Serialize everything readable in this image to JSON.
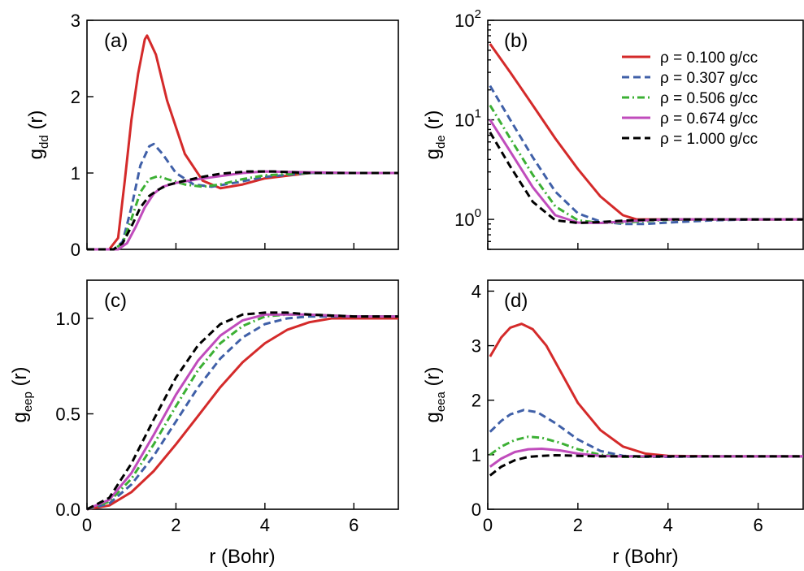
{
  "figure": {
    "xlabel": "r (Bohr)"
  },
  "colors": {
    "red": "#d42a2a",
    "blue": "#4060a8",
    "green": "#3cb034",
    "magenta": "#c04cbc",
    "black": "#000000"
  },
  "chart_data": [
    {
      "type": "line",
      "panel_label": "(a)",
      "ylabel_main": "g",
      "ylabel_sub": "dd",
      "ylabel_suffix": " (r)",
      "xlim": [
        0,
        7
      ],
      "ylim": [
        0,
        3
      ],
      "yscale": "linear",
      "xticks": [
        0,
        2,
        4,
        6
      ],
      "xtick_labels": [
        "0",
        "2",
        "4",
        "6"
      ],
      "yticks": [
        0,
        1,
        2,
        3
      ],
      "ytick_labels": [
        "0",
        "1",
        "2",
        "3"
      ],
      "show_xtick_labels": false,
      "series": [
        {
          "name": "ρ = 0.100 g/cc",
          "color": "#d42a2a",
          "style": "solid",
          "x": [
            0,
            0.5,
            0.7,
            0.85,
            1.0,
            1.15,
            1.3,
            1.35,
            1.55,
            1.8,
            2.2,
            2.6,
            3.0,
            3.5,
            4.0,
            5.0,
            6.0,
            7.0
          ],
          "y": [
            0,
            0,
            0.15,
            0.9,
            1.7,
            2.3,
            2.75,
            2.8,
            2.55,
            1.95,
            1.25,
            0.9,
            0.8,
            0.85,
            0.93,
            1.0,
            1.0,
            1.0
          ]
        },
        {
          "name": "ρ = 0.307 g/cc",
          "color": "#4060a8",
          "style": "dashed",
          "x": [
            0,
            0.6,
            0.8,
            1.0,
            1.2,
            1.4,
            1.5,
            1.7,
            2.0,
            2.4,
            2.8,
            3.4,
            4.0,
            5.0,
            6.0,
            7.0
          ],
          "y": [
            0,
            0,
            0.1,
            0.55,
            1.1,
            1.35,
            1.38,
            1.25,
            1.0,
            0.85,
            0.82,
            0.88,
            0.95,
            1.0,
            1.0,
            1.0
          ]
        },
        {
          "name": "ρ = 0.506 g/cc",
          "color": "#3cb034",
          "style": "dashdot",
          "x": [
            0,
            0.6,
            0.8,
            1.0,
            1.2,
            1.4,
            1.6,
            1.8,
            2.2,
            2.6,
            3.0,
            3.5,
            4.0,
            5.0,
            6.0,
            7.0
          ],
          "y": [
            0,
            0,
            0.08,
            0.4,
            0.75,
            0.92,
            0.96,
            0.92,
            0.85,
            0.82,
            0.85,
            0.92,
            0.97,
            1.0,
            1.0,
            1.0
          ]
        },
        {
          "name": "ρ = 0.674 g/cc",
          "color": "#c04cbc",
          "style": "solid",
          "x": [
            0,
            0.7,
            0.9,
            1.1,
            1.3,
            1.5,
            1.7,
            2.0,
            2.5,
            3.0,
            3.5,
            4.0,
            5.0,
            6.0,
            7.0
          ],
          "y": [
            0,
            0,
            0.08,
            0.3,
            0.55,
            0.73,
            0.82,
            0.87,
            0.92,
            0.96,
            1.0,
            1.02,
            1.01,
            1.0,
            1.0
          ]
        },
        {
          "name": "ρ = 1.000 g/cc",
          "color": "#000000",
          "style": "dashed",
          "x": [
            0,
            0.6,
            0.8,
            1.0,
            1.2,
            1.4,
            1.6,
            1.8,
            2.2,
            2.6,
            3.0,
            3.6,
            4.2,
            5.0,
            6.0,
            7.0
          ],
          "y": [
            0,
            0,
            0.08,
            0.3,
            0.55,
            0.7,
            0.78,
            0.84,
            0.9,
            0.95,
            0.99,
            1.02,
            1.02,
            1.0,
            1.0,
            1.0
          ]
        }
      ]
    },
    {
      "type": "line",
      "panel_label": "(b)",
      "ylabel_main": "g",
      "ylabel_sub": "de",
      "ylabel_suffix": " (r)",
      "xlim": [
        0,
        7
      ],
      "ylim": [
        0.5,
        100
      ],
      "yscale": "log",
      "xticks": [
        0,
        2,
        4,
        6
      ],
      "xtick_labels": [
        "0",
        "2",
        "4",
        "6"
      ],
      "yticks": [
        1,
        10,
        100
      ],
      "ytick_labels": [
        {
          "base": "10",
          "exp": "0"
        },
        {
          "base": "10",
          "exp": "1"
        },
        {
          "base": "10",
          "exp": "2"
        }
      ],
      "show_xtick_labels": false,
      "legend": {
        "position": "top-right",
        "entries": [
          "ρ = 0.100 g/cc",
          "ρ = 0.307 g/cc",
          "ρ = 0.506 g/cc",
          "ρ = 0.674 g/cc",
          "ρ = 1.000 g/cc"
        ]
      },
      "series": [
        {
          "name": "ρ = 0.100 g/cc",
          "color": "#d42a2a",
          "style": "solid",
          "x": [
            0.05,
            0.5,
            1.0,
            1.5,
            2.0,
            2.5,
            3.0,
            3.3,
            4.0,
            5.0,
            6.0,
            7.0
          ],
          "y": [
            58,
            30,
            14,
            6.5,
            3.2,
            1.7,
            1.1,
            1.0,
            1.0,
            1.0,
            1.0,
            1.0
          ]
        },
        {
          "name": "ρ = 0.307 g/cc",
          "color": "#4060a8",
          "style": "dashed",
          "x": [
            0.05,
            0.5,
            1.0,
            1.5,
            2.0,
            2.5,
            3.0,
            3.5,
            4.0,
            5.0,
            6.0,
            7.0
          ],
          "y": [
            22,
            10,
            4.2,
            1.9,
            1.15,
            0.95,
            0.9,
            0.9,
            0.93,
            0.98,
            1.0,
            1.0
          ]
        },
        {
          "name": "ρ = 0.506 g/cc",
          "color": "#3cb034",
          "style": "dashdot",
          "x": [
            0.05,
            0.5,
            1.0,
            1.5,
            2.0,
            2.5,
            3.0,
            3.5,
            4.0,
            5.0,
            6.0,
            7.0
          ],
          "y": [
            14,
            6.5,
            2.8,
            1.35,
            0.98,
            0.92,
            0.93,
            0.96,
            0.99,
            1.0,
            1.0,
            1.0
          ]
        },
        {
          "name": "ρ = 0.674 g/cc",
          "color": "#c04cbc",
          "style": "solid",
          "x": [
            0.05,
            0.5,
            1.0,
            1.5,
            2.0,
            2.5,
            3.0,
            3.5,
            4.0,
            5.0,
            6.0,
            7.0
          ],
          "y": [
            10,
            4.8,
            2.1,
            1.1,
            0.93,
            0.92,
            0.95,
            0.98,
            1.0,
            1.0,
            1.0,
            1.0
          ]
        },
        {
          "name": "ρ = 1.000 g/cc",
          "color": "#000000",
          "style": "dashed",
          "x": [
            0.05,
            0.5,
            1.0,
            1.5,
            2.0,
            2.5,
            3.0,
            3.5,
            4.0,
            5.0,
            6.0,
            7.0
          ],
          "y": [
            7.5,
            3.4,
            1.5,
            0.98,
            0.92,
            0.94,
            0.97,
            0.99,
            1.0,
            1.0,
            1.0,
            1.0
          ]
        }
      ]
    },
    {
      "type": "line",
      "panel_label": "(c)",
      "ylabel_main": "g",
      "ylabel_sub": "eep",
      "ylabel_suffix": " (r)",
      "xlim": [
        0,
        7
      ],
      "ylim": [
        0,
        1.2
      ],
      "yscale": "linear",
      "xticks": [
        0,
        2,
        4,
        6
      ],
      "xtick_labels": [
        "0",
        "2",
        "4",
        "6"
      ],
      "yticks": [
        0,
        0.5,
        1.0
      ],
      "ytick_labels": [
        "0.0",
        "0.5",
        "1.0"
      ],
      "show_xtick_labels": true,
      "series": [
        {
          "name": "ρ = 0.100 g/cc",
          "color": "#d42a2a",
          "style": "solid",
          "x": [
            0,
            0.5,
            1.0,
            1.5,
            2.0,
            2.5,
            3.0,
            3.5,
            4.0,
            4.5,
            5.0,
            5.5,
            6.0,
            7.0
          ],
          "y": [
            0,
            0.02,
            0.09,
            0.2,
            0.34,
            0.49,
            0.64,
            0.77,
            0.87,
            0.94,
            0.98,
            1.0,
            1.0,
            1.0
          ]
        },
        {
          "name": "ρ = 0.307 g/cc",
          "color": "#4060a8",
          "style": "dashed",
          "x": [
            0,
            0.5,
            1.0,
            1.5,
            2.0,
            2.5,
            3.0,
            3.5,
            4.0,
            4.5,
            5.0,
            6.0,
            7.0
          ],
          "y": [
            0,
            0.03,
            0.13,
            0.28,
            0.46,
            0.64,
            0.79,
            0.9,
            0.97,
            1.0,
            1.01,
            1.01,
            1.01
          ]
        },
        {
          "name": "ρ = 0.506 g/cc",
          "color": "#3cb034",
          "style": "dashdot",
          "x": [
            0,
            0.5,
            1.0,
            1.5,
            2.0,
            2.5,
            3.0,
            3.5,
            4.0,
            4.5,
            5.0,
            6.0,
            7.0
          ],
          "y": [
            0,
            0.04,
            0.16,
            0.34,
            0.54,
            0.73,
            0.87,
            0.96,
            1.01,
            1.02,
            1.02,
            1.01,
            1.01
          ]
        },
        {
          "name": "ρ = 0.674 g/cc",
          "color": "#c04cbc",
          "style": "solid",
          "x": [
            0,
            0.5,
            1.0,
            1.5,
            2.0,
            2.5,
            3.0,
            3.5,
            4.0,
            4.5,
            5.0,
            6.0,
            7.0
          ],
          "y": [
            0,
            0.05,
            0.19,
            0.39,
            0.6,
            0.78,
            0.91,
            0.99,
            1.02,
            1.02,
            1.02,
            1.01,
            1.01
          ]
        },
        {
          "name": "ρ = 1.000 g/cc",
          "color": "#000000",
          "style": "dashed",
          "x": [
            0,
            0.5,
            1.0,
            1.5,
            2.0,
            2.5,
            3.0,
            3.5,
            4.0,
            4.5,
            5.0,
            6.0,
            7.0
          ],
          "y": [
            0,
            0.06,
            0.24,
            0.47,
            0.69,
            0.86,
            0.97,
            1.02,
            1.03,
            1.03,
            1.02,
            1.01,
            1.01
          ]
        }
      ]
    },
    {
      "type": "line",
      "panel_label": "(d)",
      "ylabel_main": "g",
      "ylabel_sub": "eea",
      "ylabel_suffix": " (r)",
      "xlim": [
        0,
        7
      ],
      "ylim": [
        0,
        4.2
      ],
      "yscale": "linear",
      "xticks": [
        0,
        2,
        4,
        6
      ],
      "xtick_labels": [
        "0",
        "2",
        "4",
        "6"
      ],
      "yticks": [
        0,
        1,
        2,
        3,
        4
      ],
      "ytick_labels": [
        "0",
        "1",
        "2",
        "3",
        "4"
      ],
      "show_xtick_labels": true,
      "series": [
        {
          "name": "ρ = 0.100 g/cc",
          "color": "#d42a2a",
          "style": "solid",
          "x": [
            0.05,
            0.3,
            0.5,
            0.75,
            1.0,
            1.3,
            1.6,
            2.0,
            2.5,
            3.0,
            3.5,
            4.0,
            5.0,
            6.0,
            7.0
          ],
          "y": [
            2.8,
            3.15,
            3.33,
            3.4,
            3.3,
            3.0,
            2.55,
            1.95,
            1.45,
            1.15,
            1.02,
            0.98,
            0.97,
            0.97,
            0.97
          ]
        },
        {
          "name": "ρ = 0.307 g/cc",
          "color": "#4060a8",
          "style": "dashed",
          "x": [
            0.05,
            0.3,
            0.5,
            0.8,
            1.1,
            1.5,
            2.0,
            2.5,
            3.0,
            3.5,
            4.0,
            5.0,
            6.0,
            7.0
          ],
          "y": [
            1.42,
            1.62,
            1.74,
            1.82,
            1.78,
            1.58,
            1.28,
            1.07,
            0.98,
            0.96,
            0.96,
            0.97,
            0.97,
            0.97
          ]
        },
        {
          "name": "ρ = 0.506 g/cc",
          "color": "#3cb034",
          "style": "dashdot",
          "x": [
            0.05,
            0.3,
            0.6,
            0.9,
            1.2,
            1.6,
            2.0,
            2.5,
            3.0,
            3.5,
            4.0,
            5.0,
            6.0,
            7.0
          ],
          "y": [
            1.0,
            1.15,
            1.27,
            1.33,
            1.31,
            1.22,
            1.1,
            1.0,
            0.96,
            0.96,
            0.97,
            0.97,
            0.97,
            0.97
          ]
        },
        {
          "name": "ρ = 0.674 g/cc",
          "color": "#c04cbc",
          "style": "solid",
          "x": [
            0.05,
            0.3,
            0.6,
            0.9,
            1.2,
            1.6,
            2.0,
            2.5,
            3.0,
            3.5,
            4.0,
            5.0,
            6.0,
            7.0
          ],
          "y": [
            0.78,
            0.93,
            1.05,
            1.1,
            1.11,
            1.08,
            1.02,
            0.98,
            0.97,
            0.97,
            0.97,
            0.97,
            0.97,
            0.97
          ]
        },
        {
          "name": "ρ = 1.000 g/cc",
          "color": "#000000",
          "style": "dashed",
          "x": [
            0.05,
            0.3,
            0.6,
            0.9,
            1.2,
            1.5,
            2.0,
            2.5,
            3.0,
            3.5,
            4.0,
            5.0,
            6.0,
            7.0
          ],
          "y": [
            0.62,
            0.78,
            0.9,
            0.96,
            0.98,
            0.99,
            0.98,
            0.97,
            0.97,
            0.97,
            0.97,
            0.97,
            0.97,
            0.97
          ]
        }
      ]
    }
  ]
}
